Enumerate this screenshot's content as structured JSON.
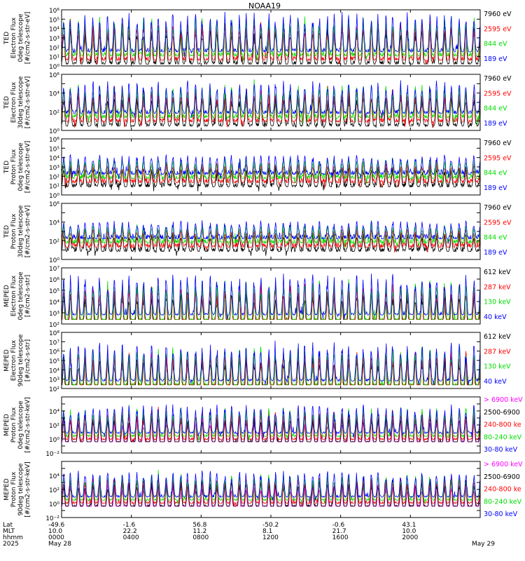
{
  "chart_data": {
    "type": "line",
    "title": "NOAA19",
    "x_range_hours": [
      0,
      24
    ],
    "x_ticks": [
      0,
      4,
      8,
      12,
      16,
      20,
      24
    ],
    "axis_rows": [
      {
        "label": "Lat",
        "values": [
          "-49.6",
          "-1.6",
          "56.8",
          "-50.2",
          "-0.6",
          "43.1",
          ""
        ]
      },
      {
        "label": "MLT",
        "values": [
          "10.0",
          "22.2",
          "11.2",
          "8.1",
          "21.7",
          "10.0",
          ""
        ]
      },
      {
        "label": "hhmm",
        "values": [
          "0000",
          "0400",
          "0800",
          "1200",
          "1600",
          "2000",
          ""
        ]
      },
      {
        "label": "2025",
        "values": [
          "May 28",
          "",
          "",
          "",
          "",
          "",
          "May 29"
        ]
      }
    ],
    "panels": [
      {
        "ylabel": [
          "TED",
          "Electron Flux",
          "0deg telescope",
          "[#/cm2-s-str-eV]"
        ],
        "y_exp_range": [
          0,
          6
        ],
        "tick_labels": [
          {
            "exp": 0,
            "text": "10⁰"
          },
          {
            "exp": 1,
            "text": "10¹"
          },
          {
            "exp": 2,
            "text": "10²"
          },
          {
            "exp": 3,
            "text": "10³"
          },
          {
            "exp": 4,
            "text": "10⁴"
          },
          {
            "exp": 5,
            "text": "10⁵"
          },
          {
            "exp": 6,
            "text": "10⁶"
          }
        ],
        "base_exp": 1.3,
        "noise": 0.4,
        "peak_exp": 5.6,
        "hi": 5.8,
        "lo": 0.2,
        "seed": 11,
        "series": [
          {
            "name": "7960 eV",
            "color": "#000000"
          },
          {
            "name": "2595 eV",
            "color": "#ff0000"
          },
          {
            "name": "844 eV",
            "color": "#00dd00"
          },
          {
            "name": "189 eV",
            "color": "#0000ff"
          }
        ]
      },
      {
        "ylabel": [
          "TED",
          "Electron Flux",
          "30deg telescope",
          "[#/cm2-s-str-eV]"
        ],
        "y_exp_range": [
          0,
          6
        ],
        "tick_labels": [
          {
            "exp": 0,
            "text": "10⁰"
          },
          {
            "exp": 2,
            "text": "10²"
          },
          {
            "exp": 4,
            "text": "10⁴"
          },
          {
            "exp": 6,
            "text": "10⁶"
          }
        ],
        "base_exp": 1.6,
        "noise": 0.4,
        "peak_exp": 5.2,
        "hi": 5.5,
        "lo": 0.3,
        "seed": 23,
        "series": [
          {
            "name": "7960 eV",
            "color": "#000000"
          },
          {
            "name": "2595 eV",
            "color": "#ff0000"
          },
          {
            "name": "844 eV",
            "color": "#00dd00"
          },
          {
            "name": "189 eV",
            "color": "#0000ff"
          }
        ]
      },
      {
        "ylabel": [
          "TED",
          "Proton Flux",
          "0deg telescope",
          "[#/cm2-s-str-eV]"
        ],
        "y_exp_range": [
          0,
          6
        ],
        "tick_labels": [
          {
            "exp": 0,
            "text": "10⁰"
          },
          {
            "exp": 1,
            "text": "10¹"
          },
          {
            "exp": 2,
            "text": "10²"
          },
          {
            "exp": 3,
            "text": "10³"
          },
          {
            "exp": 4,
            "text": "10⁴"
          },
          {
            "exp": 5,
            "text": "10⁵"
          },
          {
            "exp": 6,
            "text": "10⁶"
          }
        ],
        "base_exp": 2.0,
        "noise": 0.5,
        "peak_exp": 4.2,
        "hi": 4.6,
        "lo": 0.4,
        "seed": 37,
        "series": [
          {
            "name": "7960 eV",
            "color": "#000000"
          },
          {
            "name": "2595 eV",
            "color": "#ff0000"
          },
          {
            "name": "844 eV",
            "color": "#00dd00"
          },
          {
            "name": "189 eV",
            "color": "#0000ff"
          }
        ]
      },
      {
        "ylabel": [
          "TED",
          "Proton Flux",
          "30deg telescope",
          "[#/cm2-s-str-eV]"
        ],
        "y_exp_range": [
          0,
          6
        ],
        "tick_labels": [
          {
            "exp": 0,
            "text": "10⁰"
          },
          {
            "exp": 2,
            "text": "10²"
          },
          {
            "exp": 4,
            "text": "10⁴"
          },
          {
            "exp": 6,
            "text": "10⁶"
          }
        ],
        "base_exp": 2.0,
        "noise": 0.5,
        "peak_exp": 4.0,
        "hi": 4.4,
        "lo": 0.4,
        "seed": 41,
        "series": [
          {
            "name": "7960 eV",
            "color": "#000000"
          },
          {
            "name": "2595 eV",
            "color": "#ff0000"
          },
          {
            "name": "844 eV",
            "color": "#00dd00"
          },
          {
            "name": "189 eV",
            "color": "#0000ff"
          }
        ]
      },
      {
        "ylabel": [
          "MEPED",
          "Electron Flux",
          "0deg telescope",
          "[#/cm2-s-str]"
        ],
        "y_exp_range": [
          2,
          7
        ],
        "tick_labels": [
          {
            "exp": 2,
            "text": "10²"
          },
          {
            "exp": 3,
            "text": "10³"
          },
          {
            "exp": 4,
            "text": "10⁴"
          },
          {
            "exp": 5,
            "text": "10⁵"
          },
          {
            "exp": 6,
            "text": "10⁶"
          },
          {
            "exp": 7,
            "text": "10⁷"
          }
        ],
        "base_exp": 2.6,
        "noise": 0.15,
        "peak_exp": 6.3,
        "hi": 6.8,
        "lo": 2.4,
        "seed": 53,
        "series": [
          {
            "name": "612 keV",
            "color": "#000000"
          },
          {
            "name": "287 keV",
            "color": "#ff0000"
          },
          {
            "name": "130 keV",
            "color": "#00dd00"
          },
          {
            "name": "40 keV",
            "color": "#0000ff"
          }
        ]
      },
      {
        "ylabel": [
          "MEPED",
          "Electron Flux",
          "90deg telescope",
          "[#/cm2-s-str]"
        ],
        "y_exp_range": [
          2,
          8
        ],
        "tick_labels": [
          {
            "exp": 2,
            "text": "10²"
          },
          {
            "exp": 3,
            "text": "10³"
          },
          {
            "exp": 4,
            "text": "10⁴"
          },
          {
            "exp": 5,
            "text": "10⁵"
          },
          {
            "exp": 6,
            "text": "10⁶"
          },
          {
            "exp": 7,
            "text": "10⁷"
          },
          {
            "exp": 8,
            "text": "10⁸"
          }
        ],
        "base_exp": 2.6,
        "noise": 0.2,
        "peak_exp": 6.8,
        "hi": 7.4,
        "lo": 2.4,
        "seed": 67,
        "series": [
          {
            "name": "612 keV",
            "color": "#000000"
          },
          {
            "name": "287 keV",
            "color": "#ff0000"
          },
          {
            "name": "130 keV",
            "color": "#00dd00"
          },
          {
            "name": "40 keV",
            "color": "#0000ff"
          }
        ]
      },
      {
        "ylabel": [
          "MEPED",
          "Proton Flux",
          "0deg telescope",
          "[#/cm2-s-str-keV]"
        ],
        "y_exp_range": [
          -2,
          6
        ],
        "tick_labels": [
          {
            "exp": -2,
            "text": "10⁻²"
          },
          {
            "exp": 0,
            "text": "10⁰"
          },
          {
            "exp": 2,
            "text": "10²"
          },
          {
            "exp": 4,
            "text": "10⁴"
          }
        ],
        "base_exp": 0.2,
        "noise": 0.25,
        "peak_exp": 4.4,
        "hi": 5.0,
        "lo": -0.4,
        "seed": 79,
        "series": [
          {
            "name": "> 6900 keV",
            "color": "#ff00ff"
          },
          {
            "name": "2500-6900",
            "color": "#000000"
          },
          {
            "name": "240-800 ke",
            "color": "#ff0000"
          },
          {
            "name": "80-240 keV",
            "color": "#00dd00"
          },
          {
            "name": "30-80 keV",
            "color": "#0000ff"
          }
        ]
      },
      {
        "ylabel": [
          "MEPED",
          "Proton Flux",
          "90deg telescope",
          "[#/cm2-s-str-keV]"
        ],
        "y_exp_range": [
          -2,
          6
        ],
        "tick_labels": [
          {
            "exp": -2,
            "text": "10⁻²"
          },
          {
            "exp": 0,
            "text": "10⁰"
          },
          {
            "exp": 2,
            "text": "10²"
          },
          {
            "exp": 4,
            "text": "10⁴"
          }
        ],
        "base_exp": 0.3,
        "noise": 0.25,
        "peak_exp": 4.2,
        "hi": 5.0,
        "lo": -0.4,
        "seed": 97,
        "series": [
          {
            "name": "> 6900 keV",
            "color": "#ff00ff"
          },
          {
            "name": "2500-6900",
            "color": "#000000"
          },
          {
            "name": "240-800 ke",
            "color": "#ff0000"
          },
          {
            "name": "80-240 keV",
            "color": "#00dd00"
          },
          {
            "name": "30-80 keV",
            "color": "#0000ff"
          }
        ]
      }
    ]
  }
}
